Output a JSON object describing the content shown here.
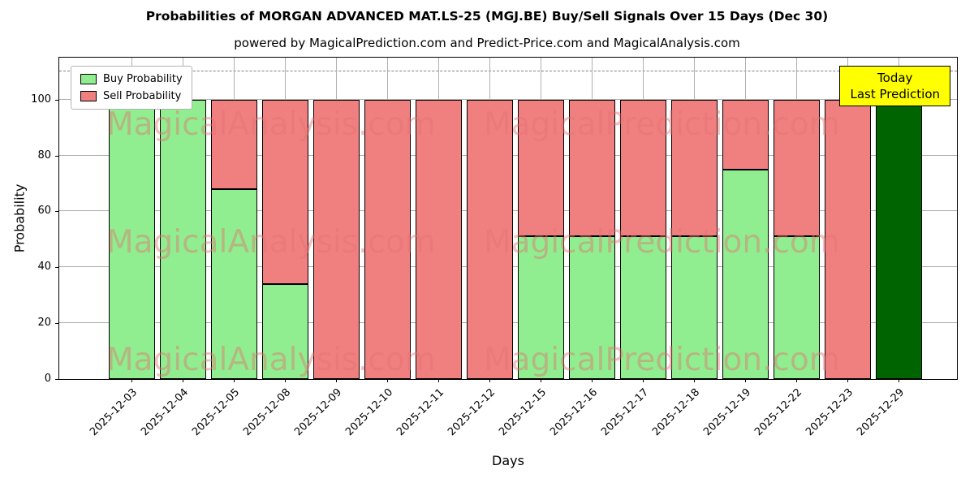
{
  "title": "Probabilities of MORGAN ADVANCED MAT.LS-25 (MGJ.BE) Buy/Sell Signals Over 15 Days (Dec 30)",
  "subtitle": "powered by MagicalPrediction.com and Predict-Price.com and MagicalAnalysis.com",
  "annotation": {
    "line1": "Today",
    "line2": "Last Prediction"
  },
  "watermarks": [
    "MagicalAnalysis.com",
    "MagicalPrediction.com"
  ],
  "colors": {
    "buy": "#90ee90",
    "sell": "#f08080",
    "today": "#006400",
    "grid": "#b0b0b0",
    "dashed_line": "#7f7f7f",
    "annotation_bg": "#ffff00",
    "watermark": "#e57171",
    "bar_edge": "#000000"
  },
  "chart_data": {
    "type": "bar",
    "stacked": true,
    "title": "Probabilities of MORGAN ADVANCED MAT.LS-25 (MGJ.BE) Buy/Sell Signals Over 15 Days (Dec 30)",
    "xlabel": "Days",
    "ylabel": "Probability",
    "ylim": [
      0,
      115
    ],
    "yticks": [
      0,
      20,
      40,
      60,
      80,
      100
    ],
    "grid": true,
    "legend_position": "upper left",
    "threshold_dashed_line_y": 110,
    "categories": [
      "2025-12-03",
      "2025-12-04",
      "2025-12-05",
      "2025-12-08",
      "2025-12-09",
      "2025-12-10",
      "2025-12-11",
      "2025-12-12",
      "2025-12-15",
      "2025-12-16",
      "2025-12-17",
      "2025-12-18",
      "2025-12-19",
      "2025-12-22",
      "2025-12-23",
      "2025-12-29"
    ],
    "series": [
      {
        "name": "Buy Probability",
        "color": "#90ee90",
        "values": [
          100,
          100,
          68,
          34,
          0,
          0,
          0,
          0,
          51,
          51,
          51,
          51,
          75,
          51,
          0,
          100
        ]
      },
      {
        "name": "Sell Probability",
        "color": "#f08080",
        "values": [
          0,
          0,
          32,
          66,
          100,
          100,
          100,
          100,
          49,
          49,
          49,
          49,
          25,
          49,
          100,
          0
        ]
      }
    ],
    "today_bar": {
      "index": 15,
      "category": "2025-12-29",
      "value": 100,
      "color": "#006400",
      "label": "Today / Last Prediction"
    }
  }
}
